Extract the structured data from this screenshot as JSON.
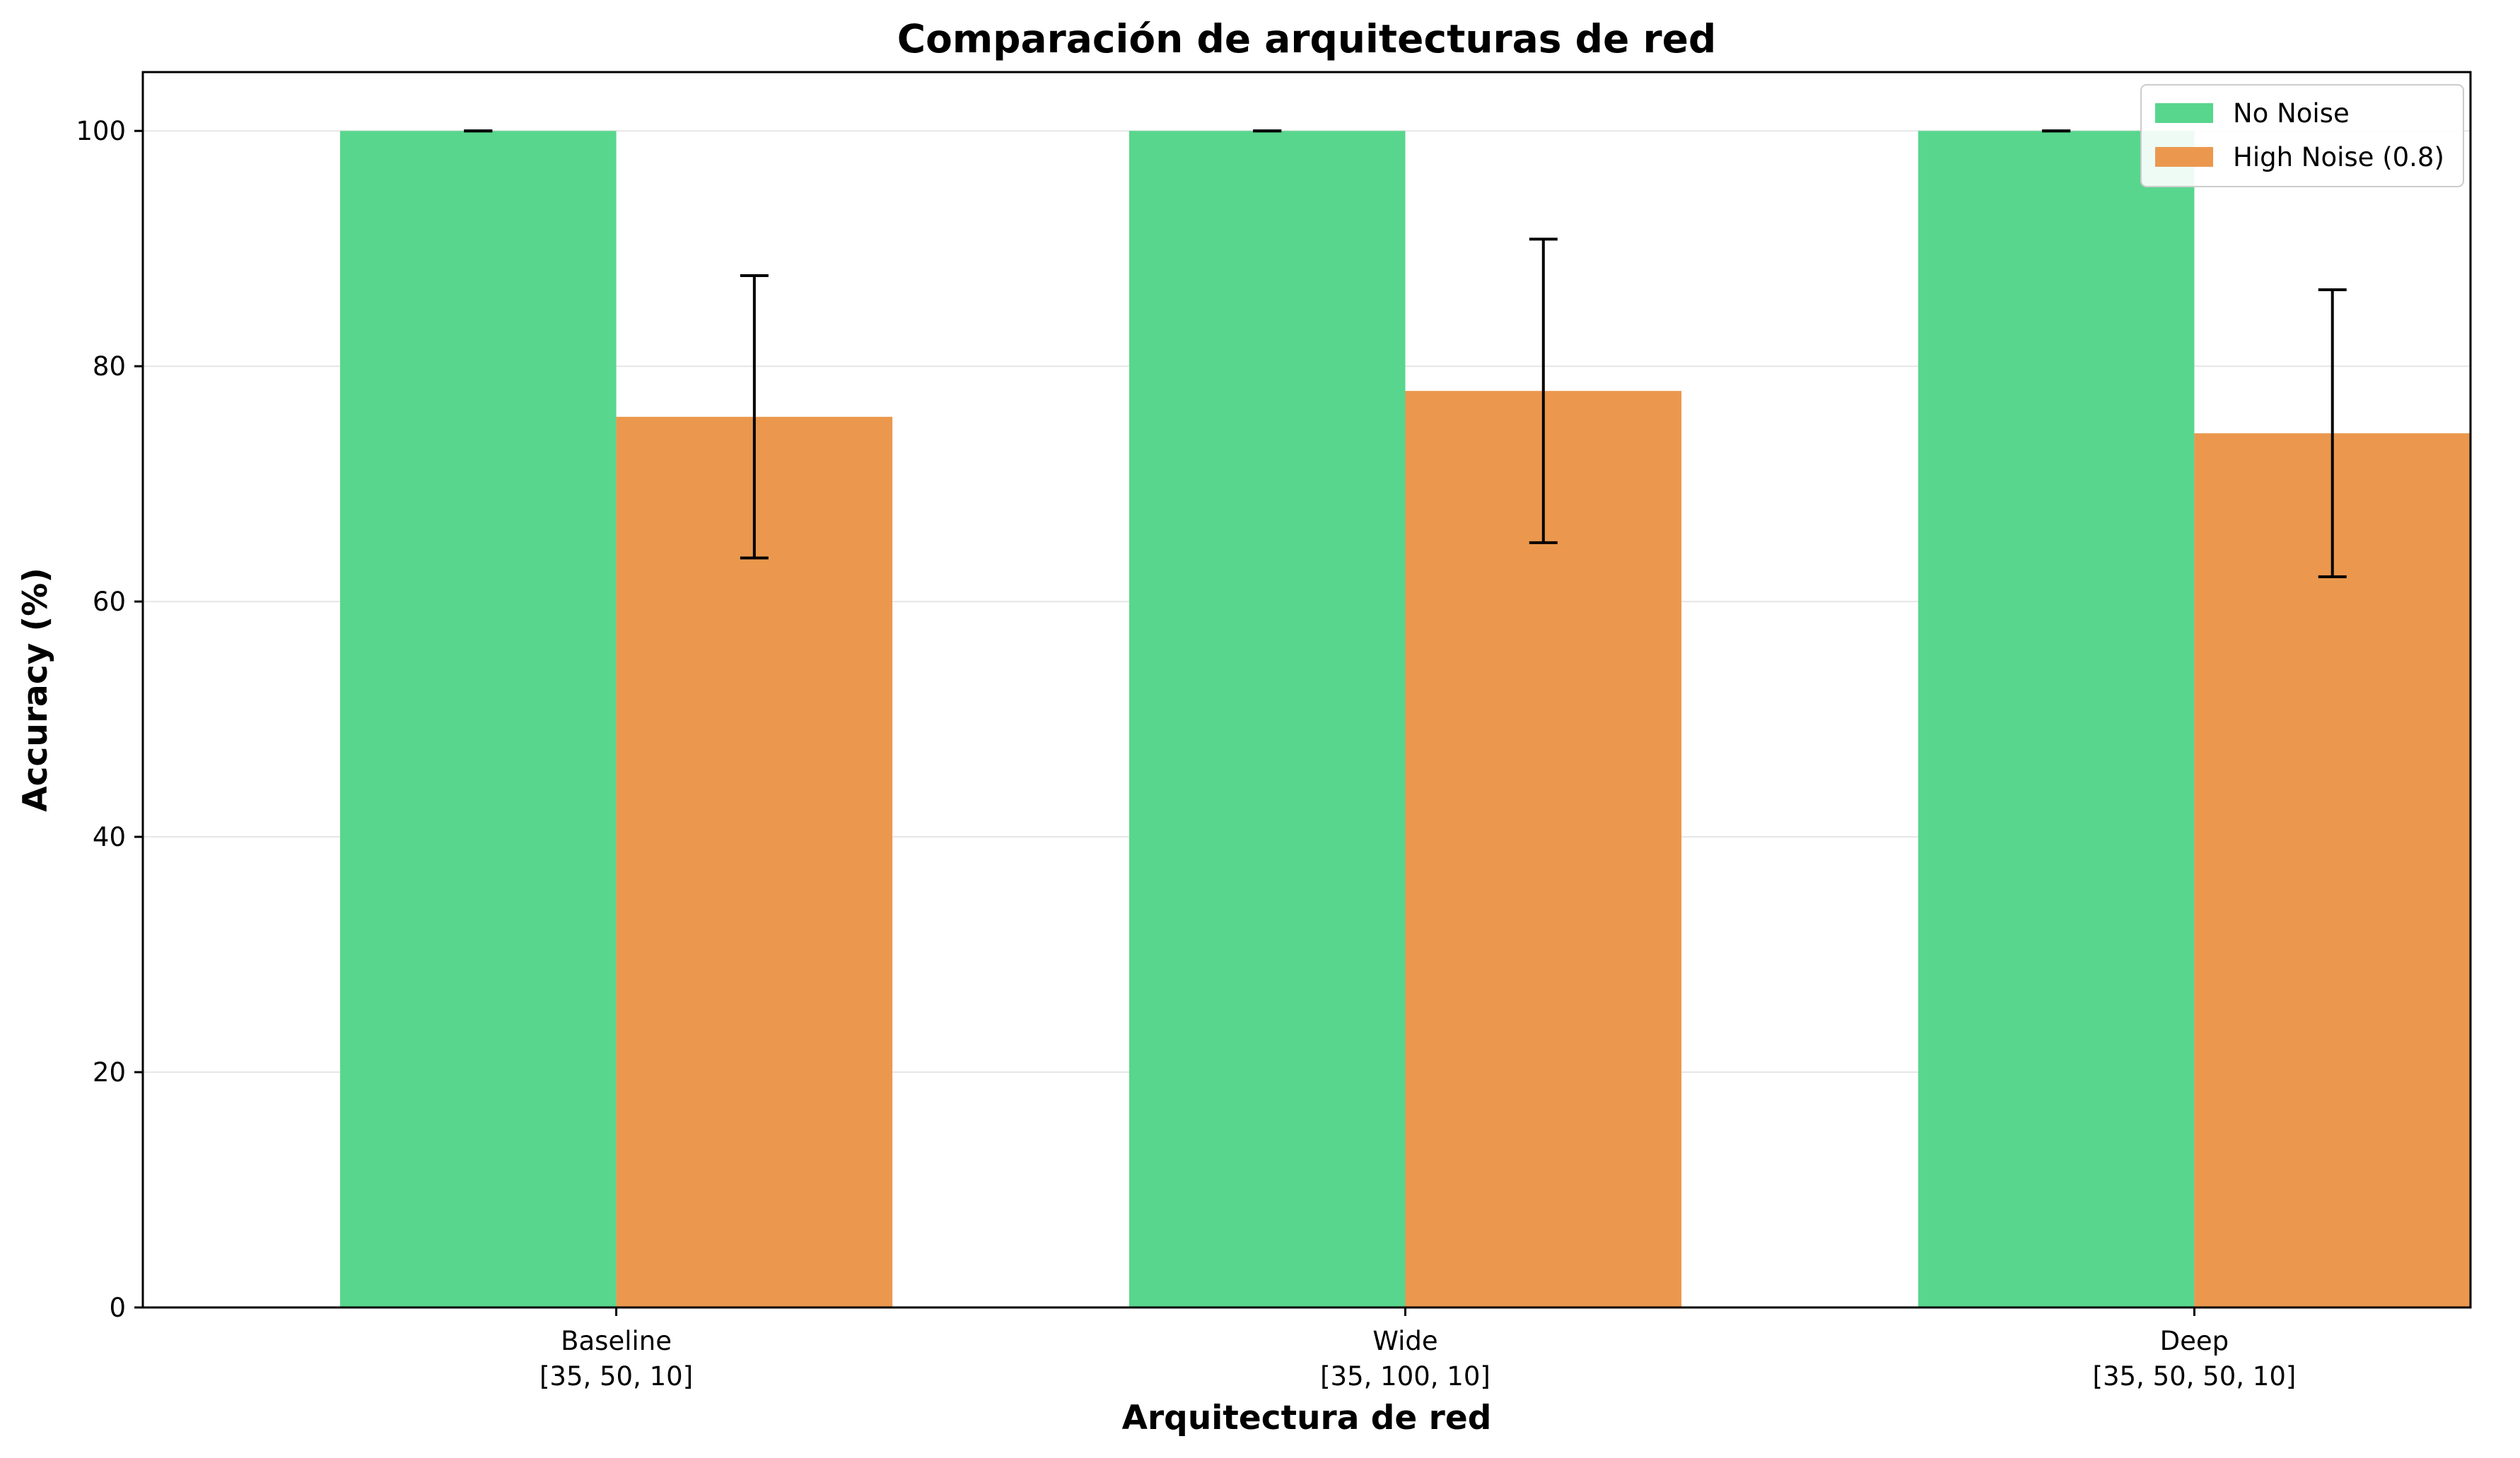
{
  "chart_data": {
    "type": "bar",
    "title": "Comparación de arquitecturas de red",
    "xlabel": "Arquitectura de red",
    "ylabel": "Accuracy (%)",
    "categories": [
      [
        "Baseline",
        "[35, 50, 10]"
      ],
      [
        "Wide",
        "[35, 100, 10]"
      ],
      [
        "Deep",
        "[35, 50, 50, 10]"
      ]
    ],
    "series": [
      {
        "name": "No Noise",
        "color": "#58d68d",
        "values": [
          100,
          100,
          100
        ],
        "errors": [
          0,
          0,
          0
        ]
      },
      {
        "name": "High Noise (0.8)",
        "color": "#eb984e",
        "values": [
          75.7,
          77.9,
          74.3
        ],
        "errors": [
          12.0,
          12.9,
          12.2
        ]
      }
    ],
    "ylim": [
      0,
      105
    ],
    "yticks": [
      0,
      20,
      40,
      60,
      80,
      100
    ],
    "grid": "y",
    "legend_position": "top-right"
  }
}
